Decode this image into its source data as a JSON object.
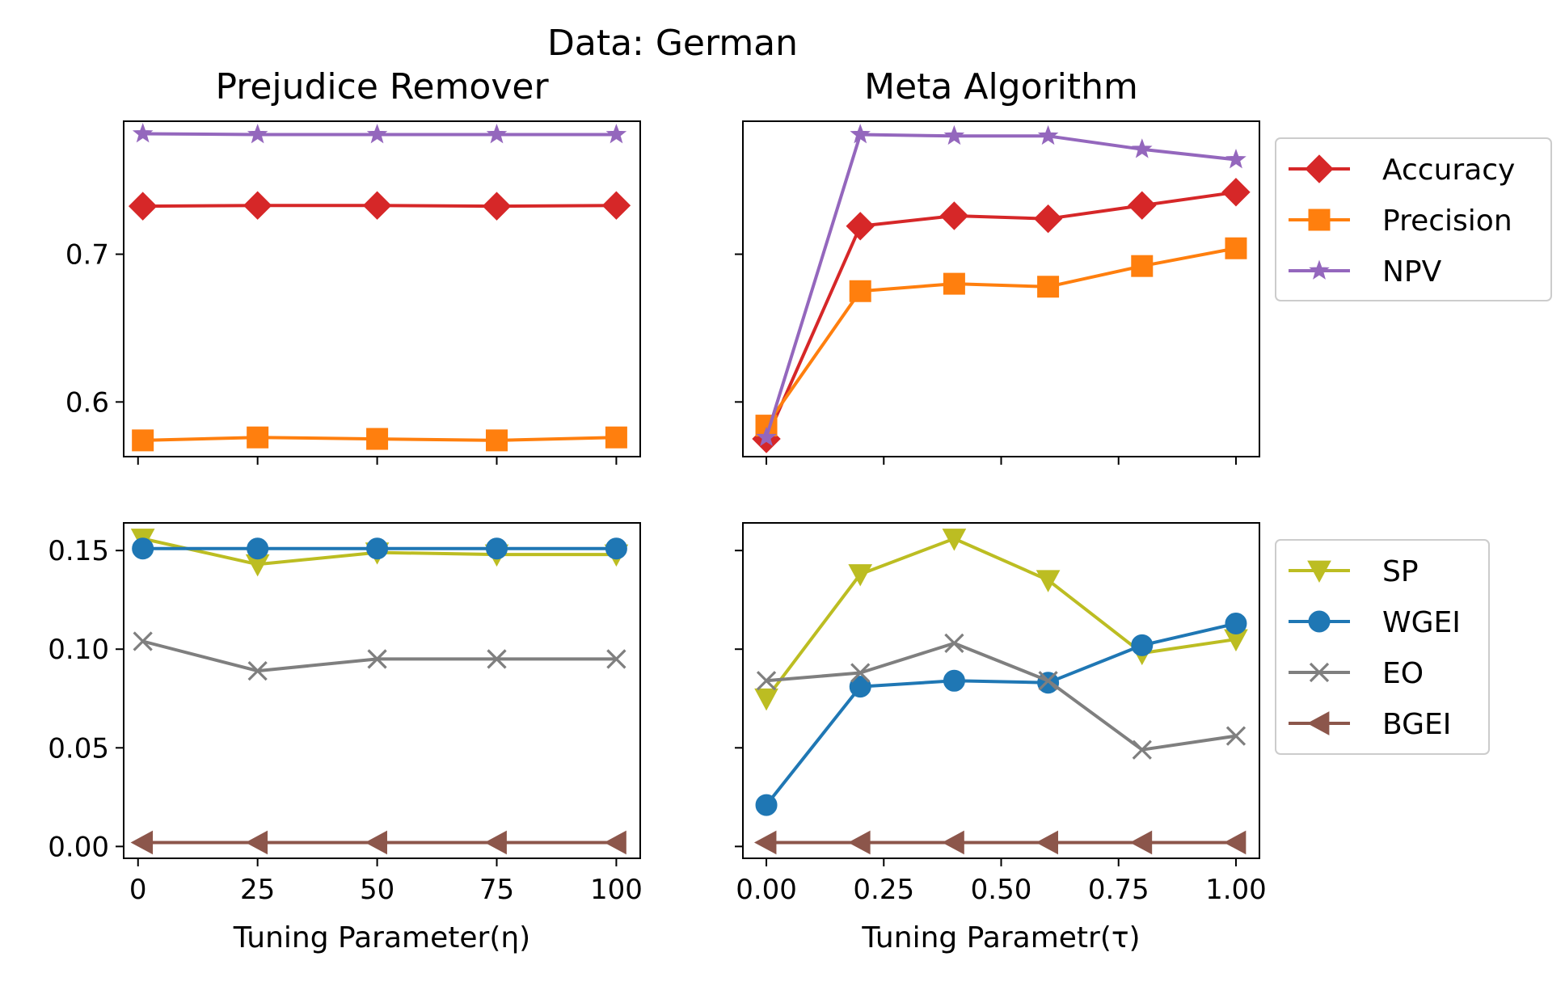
{
  "figure": {
    "suptitle": "Data: German"
  },
  "chart_data": [
    {
      "panel": "top-left",
      "type": "line",
      "title": "Prejudice Remover",
      "xlabel": "",
      "x": [
        1,
        25,
        50,
        75,
        100
      ],
      "xlim": [
        -3,
        105
      ],
      "ylim": [
        0.563,
        0.79
      ],
      "xticks": [
        0,
        25,
        50,
        75,
        100
      ],
      "yticks": [
        0.6,
        0.7
      ],
      "xtick_labels_visible": false,
      "ytick_labels_visible": true,
      "series": [
        {
          "name": "Accuracy",
          "color": "#d62728",
          "marker": "diamond",
          "values": [
            0.7325,
            0.733,
            0.733,
            0.7325,
            0.733
          ]
        },
        {
          "name": "Precision",
          "color": "#ff7f0e",
          "marker": "square",
          "values": [
            0.574,
            0.576,
            0.575,
            0.574,
            0.576
          ]
        },
        {
          "name": "NPV",
          "color": "#9467bd",
          "marker": "star",
          "values": [
            0.7815,
            0.781,
            0.781,
            0.781,
            0.781
          ]
        }
      ]
    },
    {
      "panel": "top-right",
      "type": "line",
      "title": "Meta Algorithm",
      "xlabel": "",
      "x": [
        0,
        0.2,
        0.4,
        0.6,
        0.8,
        1.0
      ],
      "xlim": [
        -0.05,
        1.05
      ],
      "ylim": [
        0.563,
        0.79
      ],
      "xticks": [
        0,
        0.25,
        0.5,
        0.75,
        1.0
      ],
      "yticks": [
        0.6,
        0.7
      ],
      "xtick_labels_visible": false,
      "ytick_labels_visible": false,
      "series": [
        {
          "name": "Accuracy",
          "color": "#d62728",
          "marker": "diamond",
          "values": [
            0.575,
            0.719,
            0.726,
            0.724,
            0.733,
            0.742
          ]
        },
        {
          "name": "Precision",
          "color": "#ff7f0e",
          "marker": "square",
          "values": [
            0.584,
            0.675,
            0.68,
            0.678,
            0.692,
            0.704
          ]
        },
        {
          "name": "NPV",
          "color": "#9467bd",
          "marker": "star",
          "values": [
            0.576,
            0.781,
            0.78,
            0.78,
            0.771,
            0.764
          ]
        }
      ],
      "legend": {
        "placement": "outside-right",
        "entries": [
          "Accuracy",
          "Precision",
          "NPV"
        ]
      }
    },
    {
      "panel": "bottom-left",
      "type": "line",
      "title": "",
      "xlabel": "Tuning Parameter(η)",
      "x": [
        1,
        25,
        50,
        75,
        100
      ],
      "xlim": [
        -3,
        105
      ],
      "ylim": [
        -0.006,
        0.164
      ],
      "xticks": [
        0,
        25,
        50,
        75,
        100
      ],
      "yticks": [
        0.0,
        0.05,
        0.1,
        0.15
      ],
      "xtick_labels": [
        "0",
        "25",
        "50",
        "75",
        "100"
      ],
      "ytick_labels": [
        "0.00",
        "0.05",
        "0.10",
        "0.15"
      ],
      "xtick_labels_visible": true,
      "ytick_labels_visible": true,
      "series": [
        {
          "name": "SP",
          "color": "#bcbd22",
          "marker": "triangle-down",
          "values": [
            0.156,
            0.143,
            0.149,
            0.148,
            0.148
          ]
        },
        {
          "name": "WGEI",
          "color": "#1f77b4",
          "marker": "circle",
          "values": [
            0.151,
            0.151,
            0.151,
            0.151,
            0.151
          ]
        },
        {
          "name": "EO",
          "color": "#7f7f7f",
          "marker": "x",
          "values": [
            0.104,
            0.089,
            0.095,
            0.095,
            0.095
          ]
        },
        {
          "name": "BGEI",
          "color": "#8c564b",
          "marker": "triangle-left",
          "values": [
            0.002,
            0.002,
            0.002,
            0.002,
            0.002
          ]
        }
      ]
    },
    {
      "panel": "bottom-right",
      "type": "line",
      "title": "",
      "xlabel": "Tuning Parametr(τ)",
      "x": [
        0,
        0.2,
        0.4,
        0.6,
        0.8,
        1.0
      ],
      "xlim": [
        -0.05,
        1.05
      ],
      "ylim": [
        -0.006,
        0.164
      ],
      "xticks": [
        0,
        0.25,
        0.5,
        0.75,
        1.0
      ],
      "yticks": [
        0.0,
        0.05,
        0.1,
        0.15
      ],
      "xtick_labels": [
        "0.00",
        "0.25",
        "0.50",
        "0.75",
        "1.00"
      ],
      "xtick_labels_visible": true,
      "ytick_labels_visible": false,
      "series": [
        {
          "name": "SP",
          "color": "#bcbd22",
          "marker": "triangle-down",
          "values": [
            0.075,
            0.138,
            0.156,
            0.135,
            0.098,
            0.105
          ]
        },
        {
          "name": "WGEI",
          "color": "#1f77b4",
          "marker": "circle",
          "values": [
            0.021,
            0.081,
            0.084,
            0.083,
            0.102,
            0.113
          ]
        },
        {
          "name": "EO",
          "color": "#7f7f7f",
          "marker": "x",
          "values": [
            0.084,
            0.088,
            0.103,
            0.084,
            0.049,
            0.056
          ]
        },
        {
          "name": "BGEI",
          "color": "#8c564b",
          "marker": "triangle-left",
          "values": [
            0.002,
            0.002,
            0.002,
            0.002,
            0.002,
            0.002
          ]
        }
      ],
      "legend": {
        "placement": "outside-right",
        "entries": [
          "SP",
          "WGEI",
          "EO",
          "BGEI"
        ]
      }
    }
  ]
}
